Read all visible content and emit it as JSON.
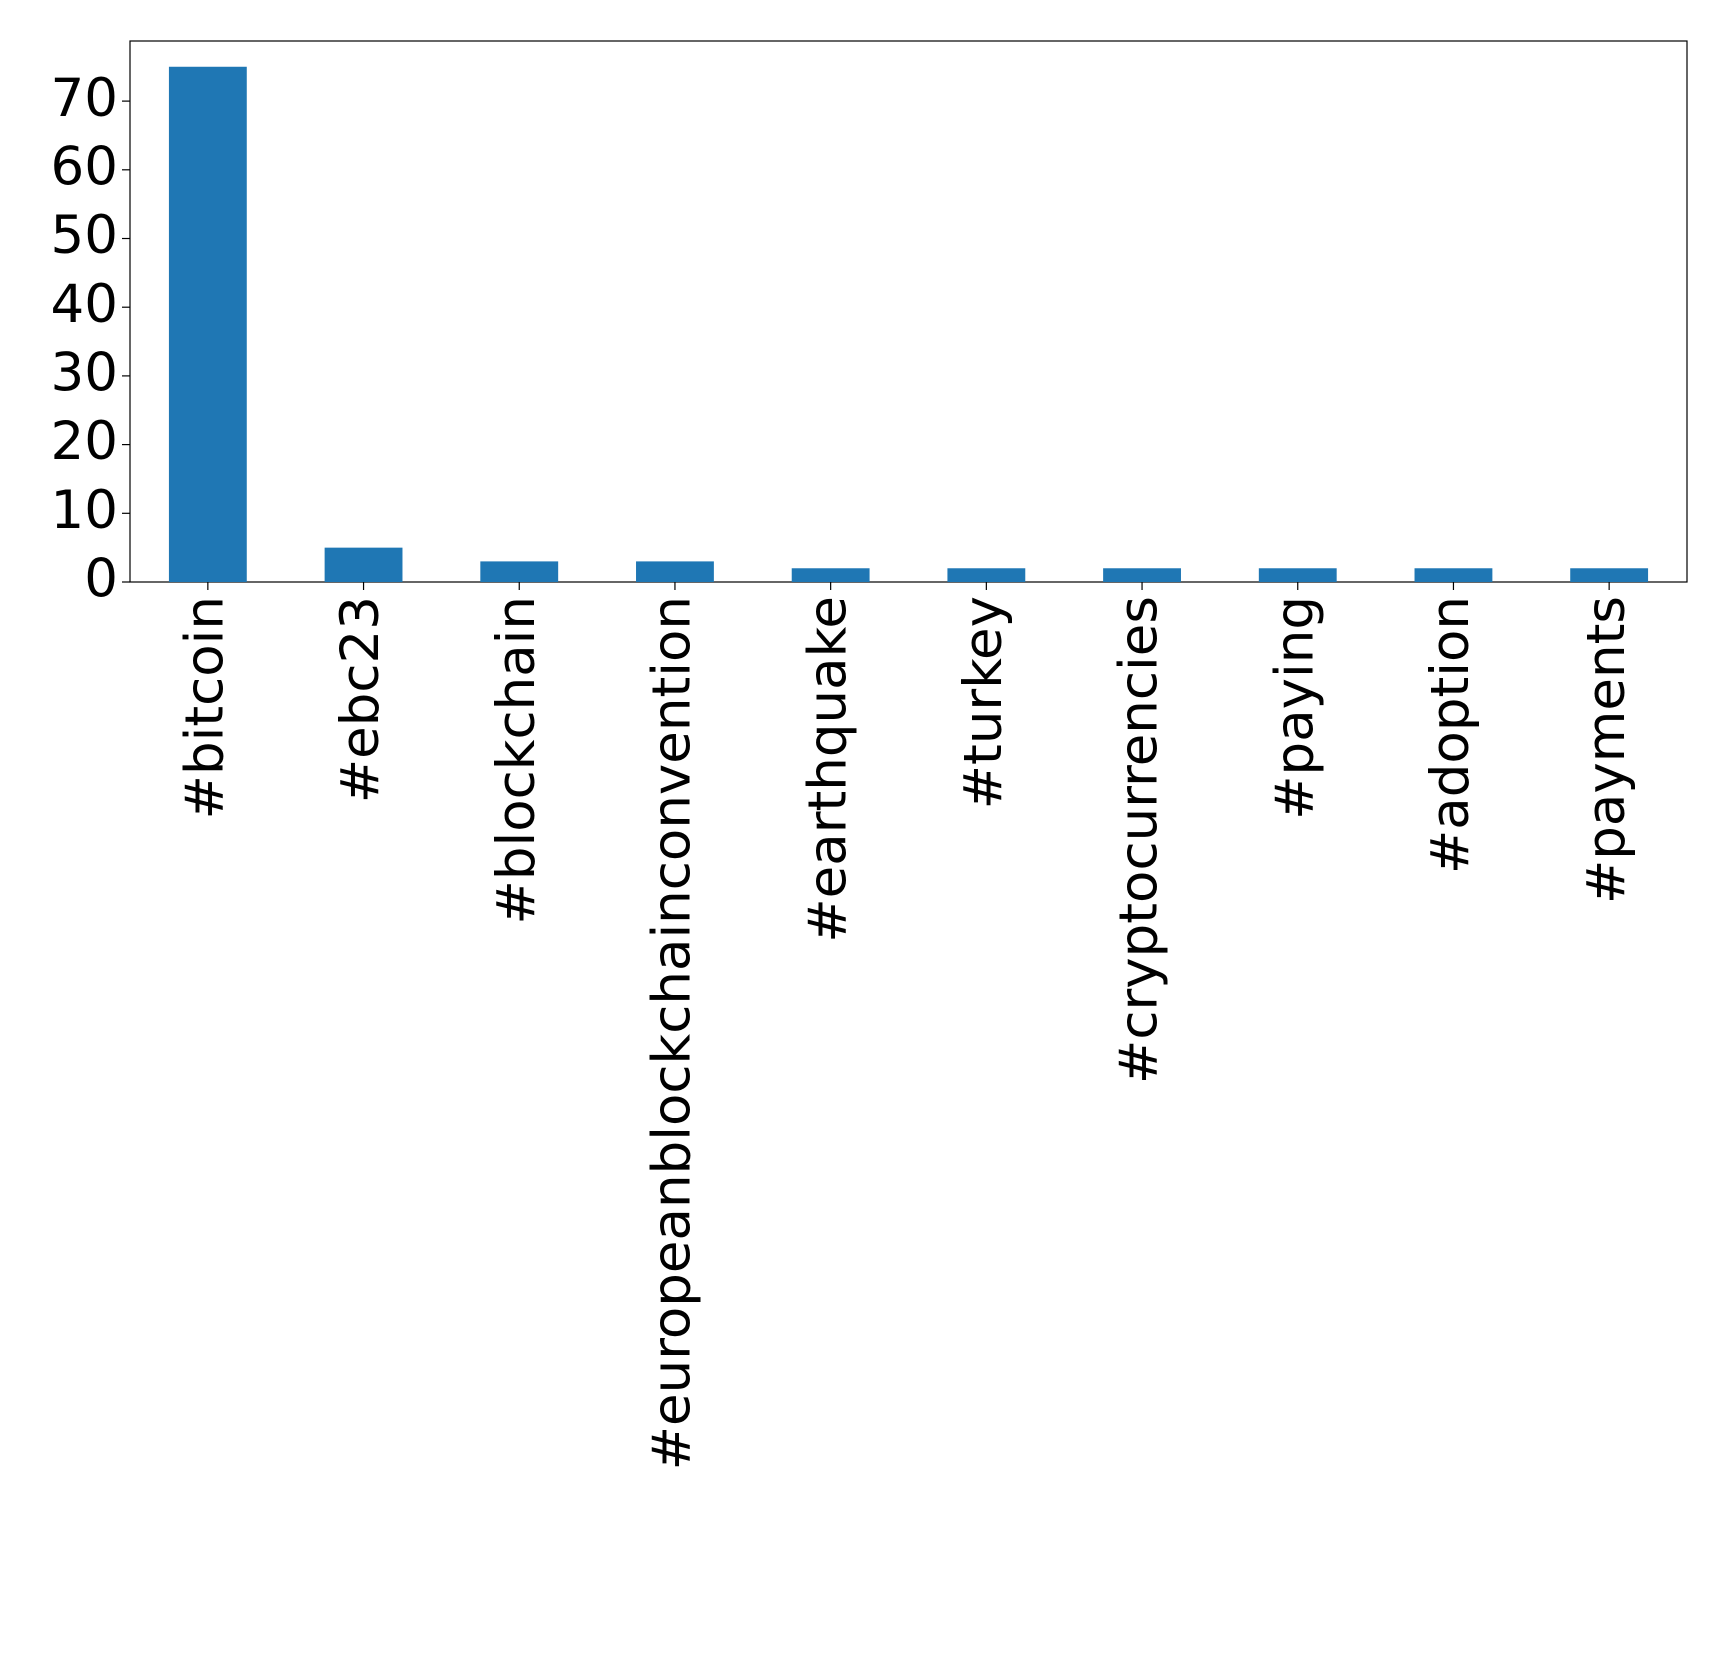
{
  "chart_data": {
    "type": "bar",
    "categories": [
      "#bitcoin",
      "#ebc23",
      "#blockchain",
      "#europeanblockchainconvention",
      "#earthquake",
      "#turkey",
      "#cryptocurrencies",
      "#paying",
      "#adoption",
      "#payments"
    ],
    "values": [
      75,
      5,
      3,
      3,
      2,
      2,
      2,
      2,
      2,
      2
    ],
    "color": "#1f77b4",
    "ylim": [
      0,
      78.75
    ],
    "yticks": [
      0,
      10,
      20,
      30,
      40,
      50,
      60,
      70
    ],
    "grid": false
  }
}
